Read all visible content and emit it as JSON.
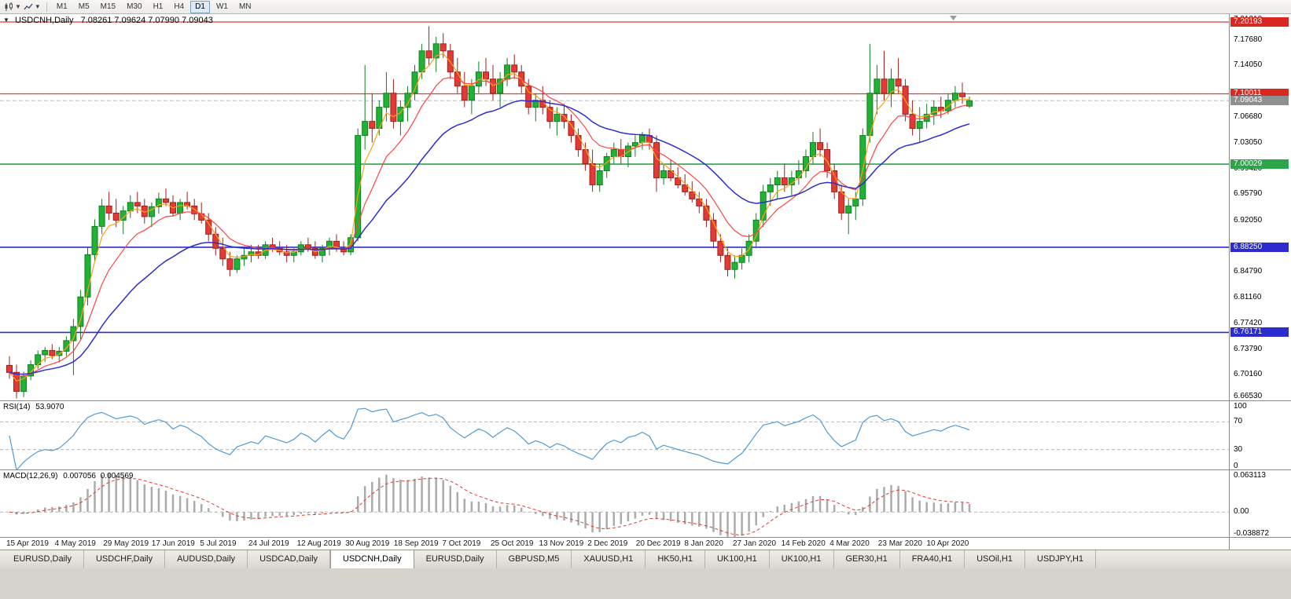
{
  "toolbar": {
    "timeframes": [
      {
        "label": "M1",
        "active": false
      },
      {
        "label": "M5",
        "active": false
      },
      {
        "label": "M15",
        "active": false
      },
      {
        "label": "M30",
        "active": false
      },
      {
        "label": "H1",
        "active": false
      },
      {
        "label": "H4",
        "active": false
      },
      {
        "label": "D1",
        "active": true
      },
      {
        "label": "W1",
        "active": false
      },
      {
        "label": "MN",
        "active": false
      }
    ]
  },
  "chart": {
    "symbol_period": "USDCNH,Daily",
    "ohlc": "7.08261 7.09624 7.07990 7.09043",
    "price_scale": {
      "ticks": [
        "7.21310",
        "7.17680",
        "7.14050",
        "7.06680",
        "7.03050",
        "6.99420",
        "6.95790",
        "6.92050",
        "6.84790",
        "6.81160",
        "6.77420",
        "6.73790",
        "6.70160",
        "6.66530"
      ],
      "badges": [
        {
          "label": "7.20193",
          "color": "#d8281f"
        },
        {
          "label": "7.10011",
          "color": "#d8281f"
        },
        {
          "label": "7.09043",
          "color": "#8f9091"
        },
        {
          "label": "7.00029",
          "color": "#2da44a"
        },
        {
          "label": "6.88250",
          "color": "#2b2bd0"
        },
        {
          "label": "6.76171",
          "color": "#2b2bd0"
        }
      ]
    },
    "hlines": [
      {
        "value": 7.20193,
        "color": "#e03a31",
        "width": 1.2,
        "dash": false
      },
      {
        "value": 7.10011,
        "color": "#e03a31",
        "width": 1.2,
        "dash": false
      },
      {
        "value": 7.09043,
        "color": "#bbbbbb",
        "width": 1,
        "dash": true
      },
      {
        "value": 7.00029,
        "color": "#2da44a",
        "width": 1.6,
        "dash": false
      },
      {
        "value": 6.8825,
        "color": "#2b2bd0",
        "width": 1.6,
        "dash": false
      },
      {
        "value": 6.76171,
        "color": "#2b2bd0",
        "width": 1.6,
        "dash": false
      }
    ]
  },
  "rsi": {
    "label": "RSI(14)",
    "value": "53.9070",
    "ticks": [
      {
        "label": "100",
        "value": 100
      },
      {
        "label": "70",
        "value": 70
      },
      {
        "label": "30",
        "value": 30
      },
      {
        "label": "0",
        "value": 0
      }
    ],
    "levels": [
      70,
      30
    ],
    "range": [
      0,
      100
    ]
  },
  "macd": {
    "label": "MACD(12,26,9)",
    "value_macd": "0.007056",
    "value_signal": "0.004569",
    "ticks": [
      {
        "label": "0.063113",
        "value": 0.063113
      },
      {
        "label": "0.00",
        "value": 0
      },
      {
        "label": "-0.038872",
        "value": -0.038872
      }
    ],
    "range": [
      -0.038872,
      0.063113
    ]
  },
  "dates": [
    "15 Apr 2019",
    "4 May 2019",
    "29 May 2019",
    "17 Jun 2019",
    "5 Jul 2019",
    "24 Jul 2019",
    "12 Aug 2019",
    "30 Aug 2019",
    "18 Sep 2019",
    "7 Oct 2019",
    "25 Oct 2019",
    "13 Nov 2019",
    "2 Dec 2019",
    "20 Dec 2019",
    "8 Jan 2020",
    "27 Jan 2020",
    "14 Feb 2020",
    "4 Mar 2020",
    "23 Mar 2020",
    "10 Apr 2020"
  ],
  "tabs": [
    {
      "label": "EURUSD,Daily",
      "active": false
    },
    {
      "label": "USDCHF,Daily",
      "active": false
    },
    {
      "label": "AUDUSD,Daily",
      "active": false
    },
    {
      "label": "USDCAD,Daily",
      "active": false
    },
    {
      "label": "USDCNH,Daily",
      "active": true
    },
    {
      "label": "EURUSD,Daily",
      "active": false
    },
    {
      "label": "GBPUSD,M5",
      "active": false
    },
    {
      "label": "XAUUSD,H1",
      "active": false
    },
    {
      "label": "HK50,H1",
      "active": false
    },
    {
      "label": "UK100,H1",
      "active": false
    },
    {
      "label": "UK100,H1",
      "active": false
    },
    {
      "label": "GER30,H1",
      "active": false
    },
    {
      "label": "FRA40,H1",
      "active": false
    },
    {
      "label": "USOil,H1",
      "active": false
    },
    {
      "label": "USDJPY,H1",
      "active": false
    }
  ],
  "colors": {
    "up_fill": "#21b235",
    "up_stroke": "#0f7f1f",
    "down_fill": "#e23b35",
    "down_stroke": "#a31f1c",
    "ma_fast": "#ffa018",
    "ma_mid": "#ff4242",
    "ma_slow": "#2d2dd2",
    "rsi_line": "#4f9bd5",
    "rsi_level": "#b5b5b5",
    "macd_hist": "#ababab",
    "macd_signal": "#e03a31",
    "shift_marker": "#9a9a9a"
  },
  "chart_data": {
    "type": "candlestick",
    "title": "USDCNH,Daily",
    "symbol": "USDCNH",
    "timeframe": "Daily",
    "ohlc_current": {
      "open": 7.08261,
      "high": 7.09624,
      "low": 7.0799,
      "close": 7.09043
    },
    "y_range": [
      6.6653,
      7.2131
    ],
    "x_labels": [
      "15 Apr 2019",
      "4 May 2019",
      "29 May 2019",
      "17 Jun 2019",
      "5 Jul 2019",
      "24 Jul 2019",
      "12 Aug 2019",
      "30 Aug 2019",
      "18 Sep 2019",
      "7 Oct 2019",
      "25 Oct 2019",
      "13 Nov 2019",
      "2 Dec 2019",
      "20 Dec 2019",
      "8 Jan 2020",
      "27 Jan 2020",
      "14 Feb 2020",
      "4 Mar 2020",
      "23 Mar 2020",
      "10 Apr 2020"
    ],
    "horizontal_levels": [
      7.20193,
      7.10011,
      7.00029,
      6.8825,
      6.76171
    ],
    "indicators": {
      "rsi": {
        "period": 14,
        "current": 53.907
      },
      "macd": {
        "fast": 12,
        "slow": 26,
        "signal": 9,
        "macd_current": 0.007056,
        "signal_current": 0.004569,
        "scale_max": 0.063113,
        "scale_min": -0.038872
      }
    },
    "candles": [
      [
        6.715,
        6.728,
        6.696,
        6.705
      ],
      [
        6.705,
        6.716,
        6.668,
        6.678
      ],
      [
        6.678,
        6.706,
        6.67,
        6.7
      ],
      [
        6.7,
        6.722,
        6.694,
        6.716
      ],
      [
        6.716,
        6.736,
        6.71,
        6.73
      ],
      [
        6.73,
        6.741,
        6.72,
        6.736
      ],
      [
        6.736,
        6.745,
        6.724,
        6.729
      ],
      [
        6.729,
        6.741,
        6.719,
        6.735
      ],
      [
        6.735,
        6.756,
        6.728,
        6.75
      ],
      [
        6.75,
        6.781,
        6.701,
        6.77
      ],
      [
        6.77,
        6.822,
        6.752,
        6.812
      ],
      [
        6.812,
        6.882,
        6.8,
        6.872
      ],
      [
        6.872,
        6.922,
        6.862,
        6.912
      ],
      [
        6.912,
        6.951,
        6.901,
        6.941
      ],
      [
        6.941,
        6.961,
        6.921,
        6.931
      ],
      [
        6.931,
        6.951,
        6.911,
        6.921
      ],
      [
        6.921,
        6.941,
        6.901,
        6.934
      ],
      [
        6.934,
        6.956,
        6.924,
        6.946
      ],
      [
        6.946,
        6.961,
        6.931,
        6.941
      ],
      [
        6.941,
        6.951,
        6.916,
        6.926
      ],
      [
        6.926,
        6.946,
        6.911,
        6.94
      ],
      [
        6.94,
        6.96,
        6.93,
        6.951
      ],
      [
        6.951,
        6.966,
        6.941,
        6.946
      ],
      [
        6.946,
        6.956,
        6.926,
        6.931
      ],
      [
        6.931,
        6.951,
        6.921,
        6.946
      ],
      [
        6.946,
        6.961,
        6.936,
        6.941
      ],
      [
        6.941,
        6.951,
        6.921,
        6.93
      ],
      [
        6.93,
        6.946,
        6.916,
        6.921
      ],
      [
        6.921,
        6.931,
        6.891,
        6.901
      ],
      [
        6.901,
        6.911,
        6.871,
        6.881
      ],
      [
        6.881,
        6.896,
        6.856,
        6.866
      ],
      [
        6.866,
        6.876,
        6.841,
        6.851
      ],
      [
        6.851,
        6.871,
        6.846,
        6.866
      ],
      [
        6.866,
        6.881,
        6.856,
        6.871
      ],
      [
        6.871,
        6.886,
        6.861,
        6.876
      ],
      [
        6.876,
        6.886,
        6.866,
        6.871
      ],
      [
        6.871,
        6.891,
        6.866,
        6.886
      ],
      [
        6.886,
        6.896,
        6.876,
        6.881
      ],
      [
        6.881,
        6.891,
        6.871,
        6.876
      ],
      [
        6.876,
        6.886,
        6.861,
        6.871
      ],
      [
        6.871,
        6.881,
        6.861,
        6.876
      ],
      [
        6.876,
        6.891,
        6.871,
        6.886
      ],
      [
        6.886,
        6.896,
        6.876,
        6.881
      ],
      [
        6.881,
        6.891,
        6.866,
        6.871
      ],
      [
        6.871,
        6.886,
        6.861,
        6.881
      ],
      [
        6.881,
        6.896,
        6.871,
        6.891
      ],
      [
        6.891,
        6.901,
        6.876,
        6.881
      ],
      [
        6.881,
        6.891,
        6.871,
        6.876
      ],
      [
        6.876,
        6.901,
        6.871,
        6.896
      ],
      [
        6.896,
        7.051,
        6.891,
        7.041
      ],
      [
        7.041,
        7.141,
        7.021,
        7.061
      ],
      [
        7.061,
        7.101,
        7.031,
        7.051
      ],
      [
        7.051,
        7.091,
        7.041,
        7.081
      ],
      [
        7.081,
        7.131,
        7.061,
        7.101
      ],
      [
        7.101,
        7.121,
        7.051,
        7.061
      ],
      [
        7.061,
        7.091,
        7.041,
        7.081
      ],
      [
        7.081,
        7.111,
        7.061,
        7.101
      ],
      [
        7.101,
        7.141,
        7.091,
        7.131
      ],
      [
        7.131,
        7.171,
        7.121,
        7.161
      ],
      [
        7.161,
        7.196,
        7.141,
        7.151
      ],
      [
        7.151,
        7.181,
        7.131,
        7.171
      ],
      [
        7.171,
        7.186,
        7.151,
        7.161
      ],
      [
        7.161,
        7.171,
        7.121,
        7.131
      ],
      [
        7.131,
        7.151,
        7.101,
        7.111
      ],
      [
        7.111,
        7.131,
        7.081,
        7.091
      ],
      [
        7.091,
        7.121,
        7.071,
        7.111
      ],
      [
        7.111,
        7.146,
        7.101,
        7.131
      ],
      [
        7.131,
        7.151,
        7.111,
        7.121
      ],
      [
        7.121,
        7.141,
        7.091,
        7.101
      ],
      [
        7.101,
        7.131,
        7.081,
        7.121
      ],
      [
        7.121,
        7.151,
        7.111,
        7.141
      ],
      [
        7.141,
        7.156,
        7.121,
        7.131
      ],
      [
        7.131,
        7.141,
        7.101,
        7.111
      ],
      [
        7.111,
        7.121,
        7.071,
        7.081
      ],
      [
        7.081,
        7.101,
        7.061,
        7.091
      ],
      [
        7.091,
        7.111,
        7.071,
        7.081
      ],
      [
        7.081,
        7.091,
        7.051,
        7.061
      ],
      [
        7.061,
        7.081,
        7.041,
        7.071
      ],
      [
        7.071,
        7.086,
        7.051,
        7.061
      ],
      [
        7.061,
        7.071,
        7.031,
        7.041
      ],
      [
        7.041,
        7.051,
        7.011,
        7.021
      ],
      [
        7.021,
        7.031,
        6.991,
        7.001
      ],
      [
        7.001,
        7.021,
        6.961,
        6.971
      ],
      [
        6.971,
        7.001,
        6.961,
        6.991
      ],
      [
        6.991,
        7.016,
        6.981,
        7.011
      ],
      [
        7.011,
        7.031,
        7.001,
        7.021
      ],
      [
        7.021,
        7.036,
        7.001,
        7.011
      ],
      [
        7.011,
        7.031,
        6.996,
        7.026
      ],
      [
        7.026,
        7.041,
        7.011,
        7.031
      ],
      [
        7.031,
        7.046,
        7.021,
        7.041
      ],
      [
        7.041,
        7.051,
        7.021,
        7.031
      ],
      [
        7.031,
        7.041,
        6.961,
        6.981
      ],
      [
        6.981,
        7.001,
        6.971,
        6.991
      ],
      [
        6.991,
        7.006,
        6.976,
        6.981
      ],
      [
        6.981,
        6.996,
        6.966,
        6.971
      ],
      [
        6.971,
        6.986,
        6.956,
        6.961
      ],
      [
        6.961,
        6.976,
        6.946,
        6.951
      ],
      [
        6.951,
        6.961,
        6.931,
        6.941
      ],
      [
        6.941,
        6.951,
        6.911,
        6.921
      ],
      [
        6.921,
        6.931,
        6.881,
        6.891
      ],
      [
        6.891,
        6.901,
        6.861,
        6.871
      ],
      [
        6.871,
        6.881,
        6.841,
        6.851
      ],
      [
        6.851,
        6.871,
        6.838,
        6.861
      ],
      [
        6.861,
        6.881,
        6.851,
        6.871
      ],
      [
        6.871,
        6.901,
        6.861,
        6.891
      ],
      [
        6.891,
        6.931,
        6.881,
        6.921
      ],
      [
        6.921,
        6.971,
        6.911,
        6.961
      ],
      [
        6.961,
        6.981,
        6.941,
        6.971
      ],
      [
        6.971,
        6.991,
        6.951,
        6.981
      ],
      [
        6.981,
        7.001,
        6.961,
        6.971
      ],
      [
        6.971,
        6.991,
        6.956,
        6.981
      ],
      [
        6.981,
        7.006,
        6.971,
        6.991
      ],
      [
        6.991,
        7.021,
        6.981,
        7.011
      ],
      [
        7.011,
        7.046,
        7.001,
        7.031
      ],
      [
        7.031,
        7.051,
        7.011,
        7.021
      ],
      [
        7.021,
        7.031,
        6.981,
        6.991
      ],
      [
        6.991,
        7.001,
        6.951,
        6.961
      ],
      [
        6.961,
        6.971,
        6.921,
        6.931
      ],
      [
        6.931,
        6.951,
        6.901,
        6.941
      ],
      [
        6.941,
        6.961,
        6.921,
        6.951
      ],
      [
        6.951,
        7.051,
        6.941,
        7.041
      ],
      [
        7.041,
        7.171,
        7.031,
        7.101
      ],
      [
        7.101,
        7.141,
        7.071,
        7.121
      ],
      [
        7.121,
        7.161,
        7.091,
        7.101
      ],
      [
        7.101,
        7.136,
        7.081,
        7.121
      ],
      [
        7.121,
        7.151,
        7.101,
        7.111
      ],
      [
        7.111,
        7.121,
        7.061,
        7.071
      ],
      [
        7.071,
        7.091,
        7.041,
        7.051
      ],
      [
        7.051,
        7.081,
        7.031,
        7.061
      ],
      [
        7.061,
        7.086,
        7.051,
        7.071
      ],
      [
        7.071,
        7.091,
        7.056,
        7.081
      ],
      [
        7.081,
        7.096,
        7.066,
        7.076
      ],
      [
        7.076,
        7.101,
        7.071,
        7.091
      ],
      [
        7.091,
        7.111,
        7.081,
        7.101
      ],
      [
        7.101,
        7.116,
        7.086,
        7.096
      ],
      [
        7.08261,
        7.09624,
        7.0799,
        7.09043
      ]
    ]
  }
}
